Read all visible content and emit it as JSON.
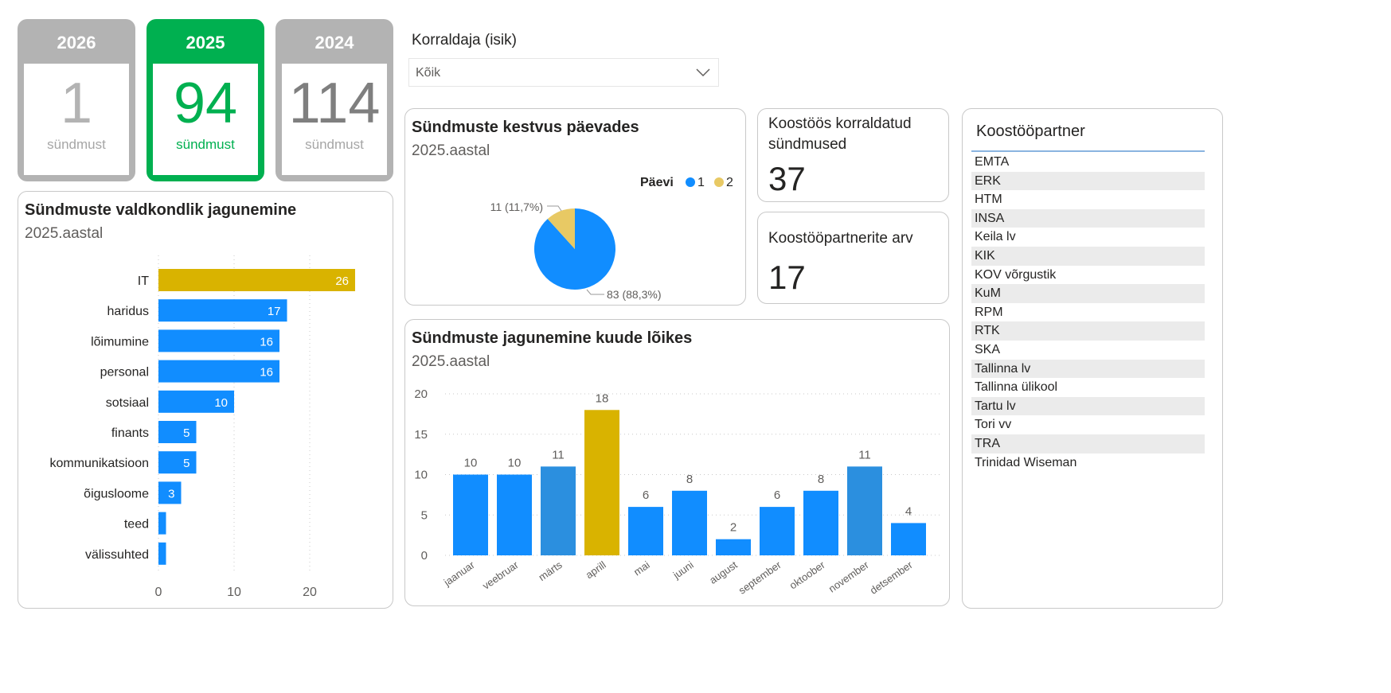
{
  "year_cards": [
    {
      "year": "2026",
      "count": "1",
      "label": "sündmust",
      "active": false
    },
    {
      "year": "2025",
      "count": "94",
      "label": "sündmust",
      "active": true
    },
    {
      "year": "2024",
      "count": "114",
      "label": "sündmust",
      "active": false
    }
  ],
  "colors": {
    "active": "#00B050",
    "inactive": "#B3B3B3",
    "blue": "#118DFF",
    "gold": "#D9B300",
    "highlight_blue": "#2B8FDF",
    "pie_gold": "#E8C964"
  },
  "slicer": {
    "label": "Korraldaja (isik)",
    "value": "Kõik",
    "icon": "chevron-down-icon"
  },
  "kpis": [
    {
      "title": "Koostöös korraldatud sündmused",
      "value": "37"
    },
    {
      "title": "Koostööpartnerite arv",
      "value": "17"
    }
  ],
  "partners": {
    "header": "Koostööpartner",
    "items": [
      "EMTA",
      "ERK",
      "HTM",
      "INSA",
      "Keila lv",
      "KIK",
      "KOV võrgustik",
      "KuM",
      "RPM",
      "RTK",
      "SKA",
      "Tallinna lv",
      "Tallinna ülikool",
      "Tartu lv",
      "Tori vv",
      "TRA",
      "Trinidad Wiseman"
    ]
  },
  "chart_data": [
    {
      "type": "bar",
      "orientation": "horizontal",
      "title": "Sündmuste valdkondlik jagunemine",
      "subtitle": "2025.aastal",
      "categories": [
        "IT",
        "haridus",
        "lõimumine",
        "personal",
        "sotsiaal",
        "finants",
        "kommunikatsioon",
        "õigusloome",
        "teed",
        "välissuhted"
      ],
      "values": [
        26,
        17,
        16,
        16,
        10,
        5,
        5,
        3,
        1,
        1
      ],
      "data_labels": [
        "26",
        "17",
        "16",
        "16",
        "10",
        "5",
        "5",
        "3",
        "",
        ""
      ],
      "highlight": "IT",
      "xticks": [
        "0",
        "10",
        "20"
      ],
      "xlim": [
        0,
        30
      ],
      "grid": true
    },
    {
      "type": "pie",
      "title": "Sündmuste kestvus päevades",
      "subtitle": "2025.aastal",
      "legend_title": "Päevi",
      "legend_position": "top-right",
      "slices": [
        {
          "name": "1",
          "value": 83,
          "label": "83 (88,3%)"
        },
        {
          "name": "2",
          "value": 11,
          "label": "11 (11,7%)"
        }
      ]
    },
    {
      "type": "bar",
      "title": "Sündmuste jagunemine kuude lõikes",
      "subtitle": "2025.aastal",
      "categories": [
        "jaanuar",
        "veebruar",
        "märts",
        "aprill",
        "mai",
        "juuni",
        "august",
        "september",
        "oktoober",
        "november",
        "detsember"
      ],
      "values": [
        10,
        10,
        11,
        18,
        6,
        8,
        2,
        6,
        8,
        11,
        4
      ],
      "highlight": "aprill",
      "yticks": [
        "0",
        "5",
        "10",
        "15",
        "20"
      ],
      "ylim": [
        0,
        20
      ],
      "grid": true
    }
  ]
}
